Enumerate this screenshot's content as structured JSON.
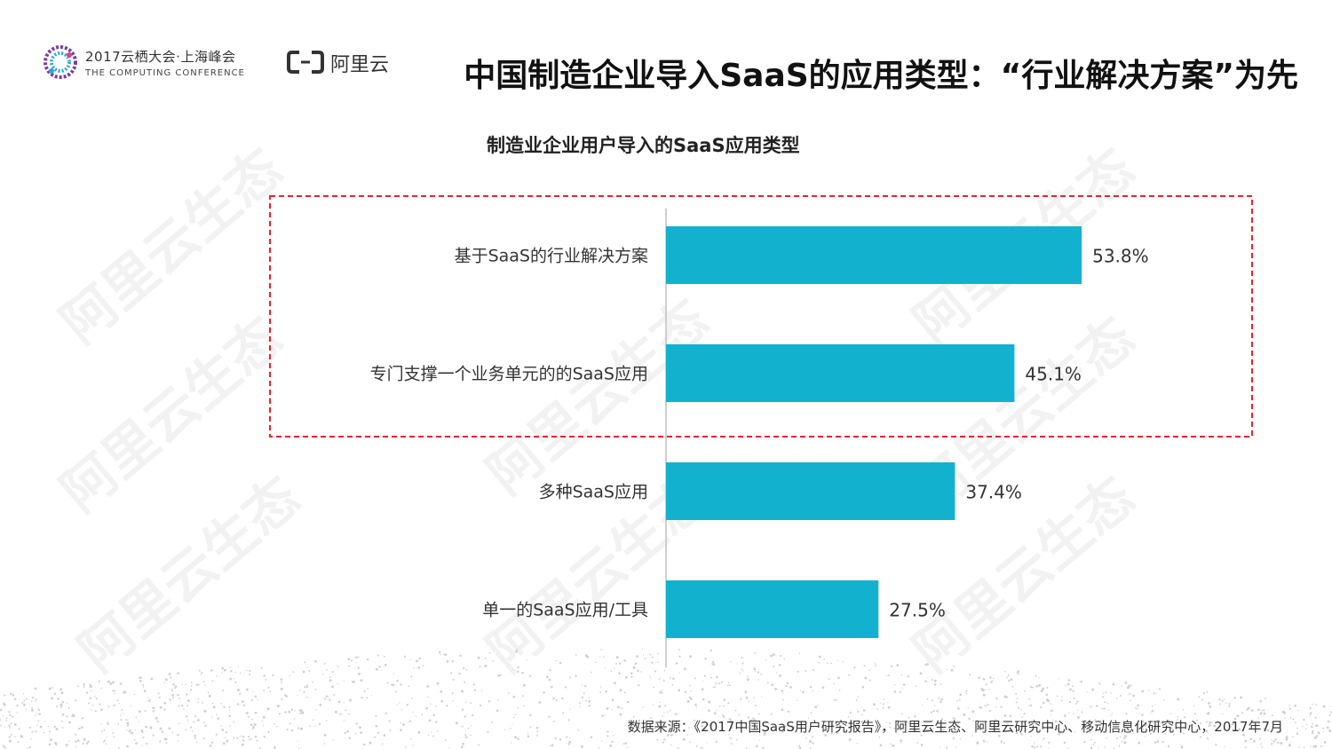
{
  "header": {
    "conference_line1": "2017云栖大会·上海峰会",
    "conference_line2": "THE COMPUTING CONFERENCE",
    "brand": "阿里云",
    "title": "中国制造企业导入SaaS的应用类型：“行业解决方案”为先"
  },
  "watermark_text": "阿里云生态",
  "chart_data": {
    "type": "bar",
    "orientation": "horizontal",
    "title": "制造业企业用户导入的SaaS应用类型",
    "categories": [
      "基于SaaS的行业解决方案",
      "专门支撑一个业务单元的的SaaS应用",
      "多种SaaS应用",
      "单一的SaaS应用/工具"
    ],
    "values": [
      53.8,
      45.1,
      37.4,
      27.5
    ],
    "value_labels": [
      "53.8%",
      "45.1%",
      "37.4%",
      "27.5%"
    ],
    "unit": "%",
    "bar_color": "#12b2cf",
    "highlight_box_color": "#e8232a",
    "highlighted_categories": [
      0,
      1
    ],
    "grid": false,
    "legend": "none"
  },
  "source": "数据来源：《2017中国SaaS用户研究报告》，阿里云生态、阿里云研究中心、移动信息化研究中心，2017年7月"
}
